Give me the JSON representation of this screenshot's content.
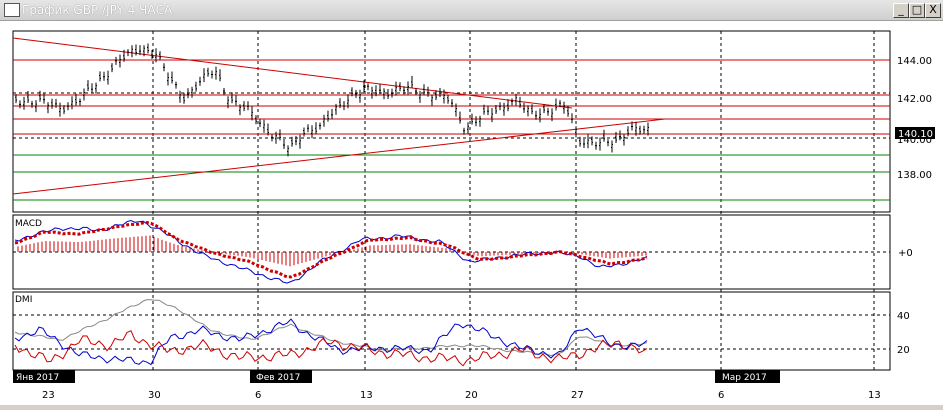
{
  "window": {
    "title": "График GBP /JPY  4 ЧАСА",
    "minimize_label": "_",
    "maximize_label": "□",
    "close_label": "X"
  },
  "price_panel": {
    "y_ticks": [
      "144.00",
      "142.00",
      "138.00"
    ],
    "partial_tick": "140.00",
    "current_price": "140.10"
  },
  "macd_panel": {
    "label": "MACD",
    "zero_label": "+0"
  },
  "dmi_panel": {
    "label": "DMI",
    "y_ticks": [
      "40",
      "20"
    ]
  },
  "x_axis": {
    "month_labels": [
      "Янв 2017",
      "Фев 2017",
      "Мар 2017"
    ],
    "day_labels": [
      "23",
      "30",
      "6",
      "13",
      "20",
      "27",
      "6",
      "13"
    ]
  },
  "colors": {
    "candles": "#000000",
    "resistance": "#cc0000",
    "support": "#008000",
    "macd_signal": "#cc0000",
    "macd_line": "#0000cc",
    "dmi_plus": "#0000cc",
    "dmi_minus": "#cc0000",
    "adx": "#888888"
  }
}
